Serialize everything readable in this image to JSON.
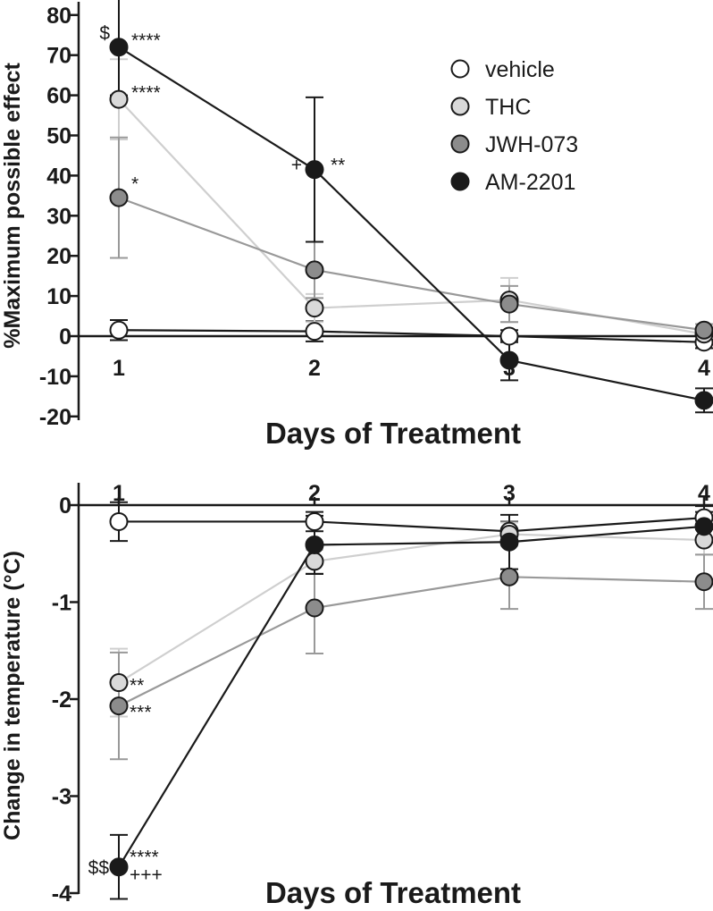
{
  "colors": {
    "vehicle": "#ffffff",
    "THC": "#d9d9d9",
    "JWH-073": "#8c8c8c",
    "AM-2201": "#1a1a1a",
    "line_vehicle": "#1a1a1a",
    "line_THC": "#cfcfcf",
    "line_JWH-073": "#999999",
    "line_AM-2201": "#1a1a1a"
  },
  "chart_data": [
    {
      "type": "line",
      "xlabel": "Days of Treatment",
      "ylabel": "%Maximum possible effect",
      "x": [
        1,
        2,
        3,
        4
      ],
      "xticks": [
        "1",
        "2",
        "3",
        "4"
      ],
      "yticks": [
        "-20",
        "-10",
        "0",
        "10",
        "20",
        "30",
        "40",
        "50",
        "60",
        "70",
        "80"
      ],
      "ylim": [
        -20,
        85
      ],
      "legend_position": "top-right",
      "series": [
        {
          "name": "vehicle",
          "values": [
            1.5,
            1.2,
            0,
            -1.5
          ],
          "errors": [
            2.5,
            2.5,
            1.5,
            1.5
          ]
        },
        {
          "name": "THC",
          "values": [
            59,
            7,
            9,
            0.5
          ],
          "errors": [
            10,
            3.5,
            5.5,
            1.5
          ]
        },
        {
          "name": "JWH-073",
          "values": [
            34.5,
            16.5,
            8,
            1.5
          ],
          "errors": [
            15,
            7,
            4.5,
            1.5
          ]
        },
        {
          "name": "AM-2201",
          "values": [
            72,
            41.5,
            -6,
            -16
          ],
          "errors": [
            12,
            18,
            5,
            3
          ]
        }
      ],
      "annotations": [
        {
          "text": "$",
          "x": 1,
          "y": 73
        },
        {
          "text": "****",
          "x": 1,
          "y": 73
        },
        {
          "text": "****",
          "x": 1,
          "y": 60
        },
        {
          "text": "*",
          "x": 1,
          "y": 36
        },
        {
          "text": "+",
          "x": 2,
          "y": 42
        },
        {
          "text": "**",
          "x": 2,
          "y": 42
        }
      ]
    },
    {
      "type": "line",
      "xlabel": "Days of Treatment",
      "ylabel": "Change in temperature (°C)",
      "x": [
        1,
        2,
        3,
        4
      ],
      "xticks": [
        "1",
        "2",
        "3",
        "4"
      ],
      "yticks": [
        "0",
        "-1",
        "-2",
        "-3",
        "-4"
      ],
      "ylim": [
        -4,
        0
      ],
      "series": [
        {
          "name": "vehicle",
          "values": [
            -0.17,
            -0.17,
            -0.27,
            -0.13
          ],
          "errors": [
            0.2,
            0.1,
            0.1,
            0.12
          ]
        },
        {
          "name": "THC",
          "values": [
            -1.83,
            -0.58,
            -0.3,
            -0.36
          ],
          "errors": [
            0.35,
            0.12,
            0.12,
            0.15
          ]
        },
        {
          "name": "JWH-073",
          "values": [
            -2.07,
            -1.06,
            -0.74,
            -0.79
          ],
          "errors": [
            0.55,
            0.47,
            0.33,
            0.28
          ]
        },
        {
          "name": "AM-2201",
          "values": [
            -3.73,
            -0.41,
            -0.38,
            -0.22
          ],
          "errors": [
            0.33,
            0.3,
            0.28,
            0.15
          ]
        }
      ],
      "annotations": [
        {
          "text": "**",
          "x": 1,
          "y": -1.83
        },
        {
          "text": "***",
          "x": 1,
          "y": -2.07
        },
        {
          "text": "$$",
          "x": 1,
          "y": -3.73
        },
        {
          "text": "****",
          "x": 1,
          "y": -3.73
        },
        {
          "text": "+++",
          "x": 1,
          "y": -3.73
        }
      ]
    }
  ]
}
